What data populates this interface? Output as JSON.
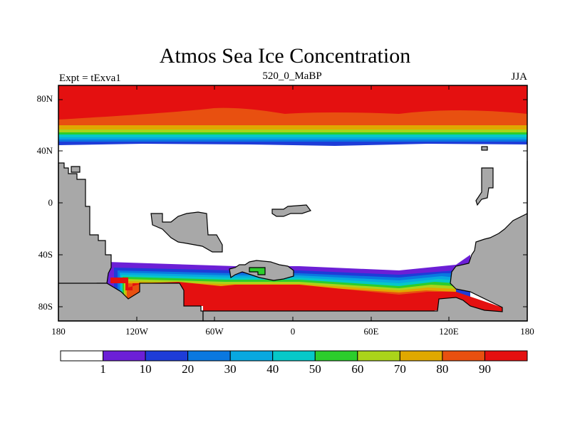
{
  "title": "Atmos Sea Ice Concentration",
  "subtitle_left": "Expt = tExva1",
  "subtitle_center": "520_0_MaBP",
  "subtitle_right": "JJA",
  "lat_ticks": [
    "80N",
    "40N",
    "0",
    "40S",
    "80S"
  ],
  "lon_ticks": [
    "180",
    "120W",
    "60W",
    "0",
    "60E",
    "120E",
    "180"
  ],
  "colorbar": {
    "labels": [
      "1",
      "10",
      "20",
      "30",
      "40",
      "50",
      "60",
      "70",
      "80",
      "90"
    ],
    "colors": [
      "#ffffff",
      "#6c1fd6",
      "#1e3cd8",
      "#0a78e0",
      "#08a8e0",
      "#06c8c8",
      "#2ccd2c",
      "#aad41a",
      "#e0a800",
      "#e85010",
      "#e41010"
    ]
  },
  "colors": {
    "land": "#a8a8a8",
    "ocean": "#ffffff",
    "ice_max": "#e41010"
  }
}
